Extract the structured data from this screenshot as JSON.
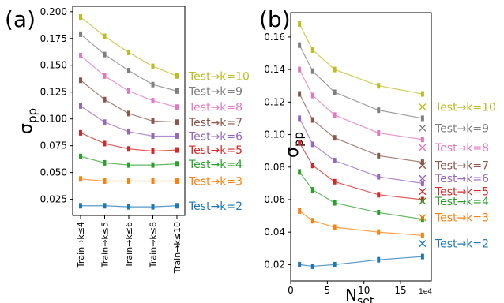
{
  "chart_data": [
    {
      "type": "line",
      "panel_label": "(a)",
      "ylabel": "σ",
      "ylabel_sub": "pp",
      "categories": [
        "Train→k≤4",
        "Train→k≤5",
        "Train→k≤6",
        "Train→k≤8",
        "Train→k≤10"
      ],
      "ylim": [
        0.01,
        0.205
      ],
      "yticks": [
        0.025,
        0.05,
        0.075,
        0.1,
        0.125,
        0.15,
        0.175,
        0.2
      ],
      "ytick_labels": [
        "0.025",
        "0.050",
        "0.075",
        "0.100",
        "0.125",
        "0.150",
        "0.175",
        "0.200"
      ],
      "grid": false,
      "legend": "inline-right",
      "series": [
        {
          "name": "Test→k=10",
          "color": "#bcbd22",
          "values": [
            0.195,
            0.177,
            0.162,
            0.149,
            0.14
          ]
        },
        {
          "name": "Test→k=9",
          "color": "#7f7f7f",
          "values": [
            0.179,
            0.16,
            0.145,
            0.132,
            0.126
          ]
        },
        {
          "name": "Test→k=8",
          "color": "#e377c2",
          "values": [
            0.159,
            0.14,
            0.126,
            0.117,
            0.111
          ]
        },
        {
          "name": "Test→k=7",
          "color": "#8c564b",
          "values": [
            0.136,
            0.118,
            0.105,
            0.098,
            0.097
          ]
        },
        {
          "name": "Test→k=6",
          "color": "#9467bd",
          "values": [
            0.112,
            0.097,
            0.088,
            0.084,
            0.084
          ]
        },
        {
          "name": "Test→k=5",
          "color": "#d62728",
          "values": [
            0.087,
            0.077,
            0.072,
            0.07,
            0.071
          ]
        },
        {
          "name": "Test→k=4",
          "color": "#2ca02c",
          "values": [
            0.065,
            0.059,
            0.057,
            0.057,
            0.058
          ]
        },
        {
          "name": "Test→k=3",
          "color": "#ff7f0e",
          "values": [
            0.044,
            0.042,
            0.042,
            0.042,
            0.042
          ]
        },
        {
          "name": "Test→k=2",
          "color": "#1f77b4",
          "values": [
            0.019,
            0.019,
            0.018,
            0.018,
            0.019
          ]
        }
      ]
    },
    {
      "type": "line",
      "panel_label": "(b)",
      "ylabel": "σ",
      "ylabel_sub": "pp",
      "xlabel": "N",
      "xlabel_sub": "set",
      "x_multiplier": "1e4",
      "x": [
        1.2,
        3.0,
        6.0,
        12.0,
        18.0
      ],
      "xlim": [
        0,
        19.2
      ],
      "xticks": [
        0,
        5,
        10,
        15
      ],
      "ylim": [
        0.01,
        0.175
      ],
      "yticks": [
        0.02,
        0.04,
        0.06,
        0.08,
        0.1,
        0.12,
        0.14,
        0.16
      ],
      "ytick_labels": [
        "0.02",
        "0.04",
        "0.06",
        "0.08",
        "0.10",
        "0.12",
        "0.14",
        "0.16"
      ],
      "grid": false,
      "legend": "inline-right",
      "marker_x": 18.0,
      "series": [
        {
          "name": "Test→k=10",
          "color": "#bcbd22",
          "values": [
            0.168,
            0.152,
            0.14,
            0.13,
            0.125
          ],
          "marker": 0.117
        },
        {
          "name": "Test→k=9",
          "color": "#7f7f7f",
          "values": [
            0.155,
            0.139,
            0.126,
            0.115,
            0.11
          ],
          "marker": 0.104
        },
        {
          "name": "Test→k=8",
          "color": "#e377c2",
          "values": [
            0.14,
            0.124,
            0.112,
            0.101,
            0.097
          ],
          "marker": 0.092
        },
        {
          "name": "Test→k=7",
          "color": "#8c564b",
          "values": [
            0.125,
            0.109,
            0.098,
            0.087,
            0.083
          ],
          "marker": 0.081
        },
        {
          "name": "Test→k=6",
          "color": "#9467bd",
          "values": [
            0.11,
            0.094,
            0.084,
            0.074,
            0.07
          ],
          "marker": 0.073
        },
        {
          "name": "Test→k=5",
          "color": "#d62728",
          "values": [
            0.095,
            0.081,
            0.071,
            0.063,
            0.06
          ],
          "marker": 0.065
        },
        {
          "name": "Test→k=4",
          "color": "#2ca02c",
          "values": [
            0.077,
            0.066,
            0.058,
            0.052,
            0.048
          ],
          "marker": 0.059
        },
        {
          "name": "Test→k=3",
          "color": "#ff7f0e",
          "values": [
            0.053,
            0.047,
            0.043,
            0.04,
            0.038
          ],
          "marker": 0.049
        },
        {
          "name": "Test→k=2",
          "color": "#1f77b4",
          "values": [
            0.02,
            0.019,
            0.02,
            0.023,
            0.025
          ],
          "marker": 0.033
        }
      ]
    }
  ]
}
